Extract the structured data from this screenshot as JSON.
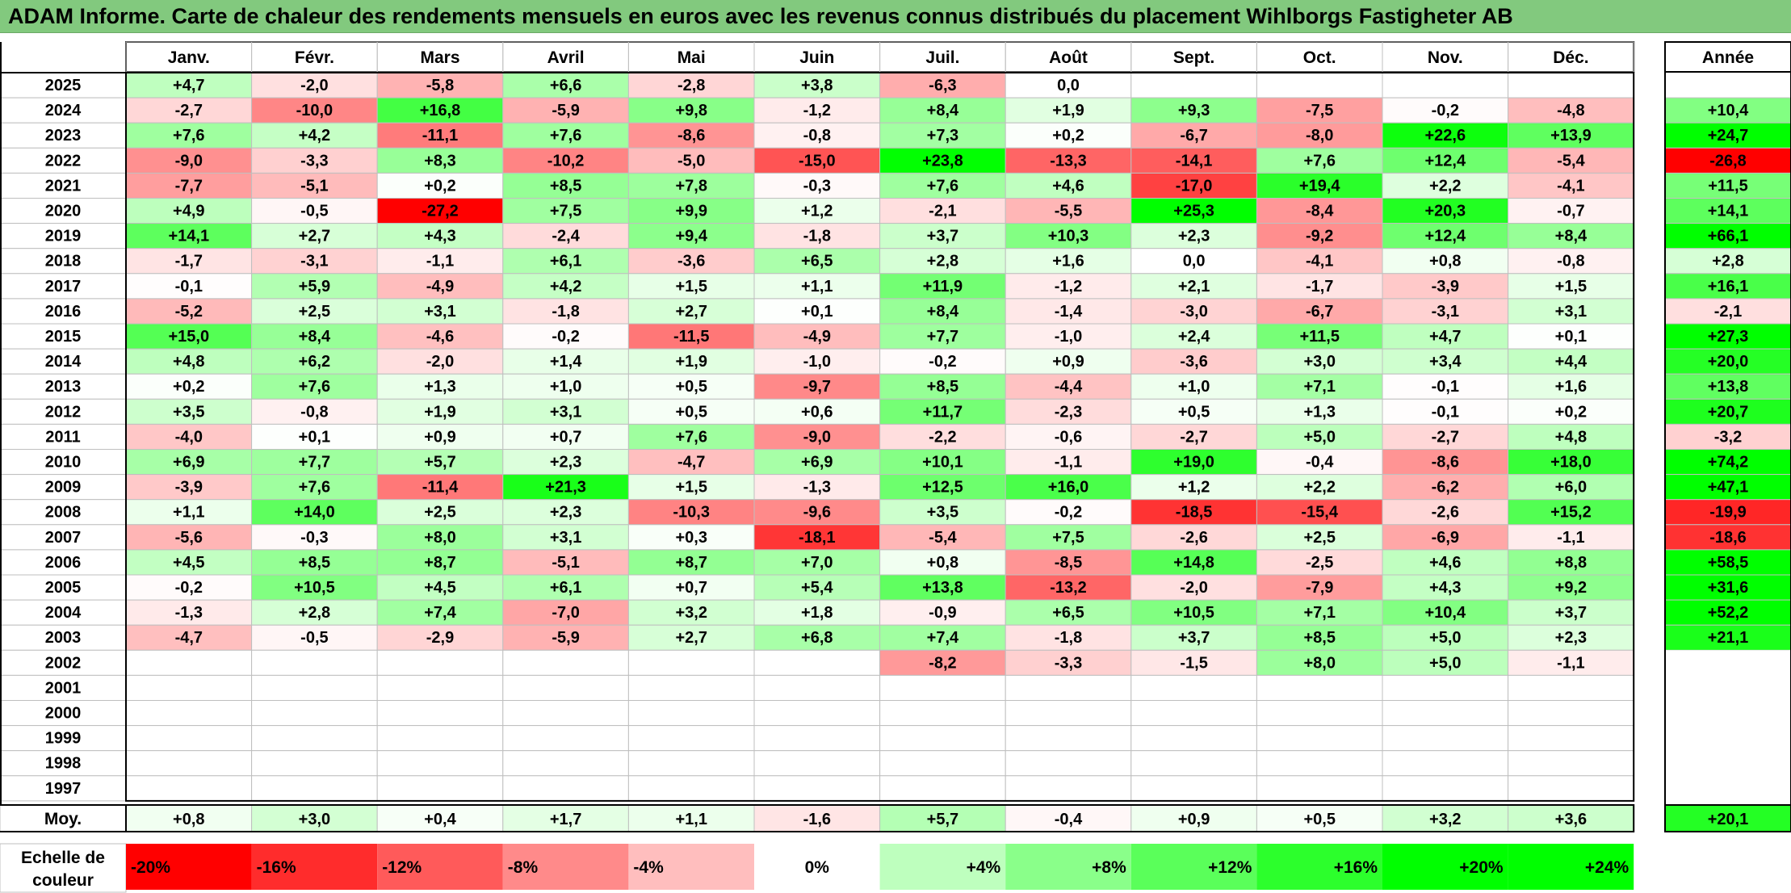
{
  "title": "ADAM Informe. Carte de chaleur des rendements mensuels en euros avec les revenus connus distribués du placement Wihlborgs Fastigheter AB",
  "chart_data": {
    "type": "heatmap",
    "months": [
      "Janv.",
      "Févr.",
      "Mars",
      "Avril",
      "Mai",
      "Juin",
      "Juil.",
      "Août",
      "Sept.",
      "Oct.",
      "Nov.",
      "Déc."
    ],
    "year_header": "Année",
    "rows": [
      {
        "year": "2025",
        "values": [
          4.7,
          -2.0,
          -5.8,
          6.6,
          -2.8,
          3.8,
          -6.3,
          0.0,
          null,
          null,
          null,
          null
        ],
        "annual": null
      },
      {
        "year": "2024",
        "values": [
          -2.7,
          -10.0,
          16.8,
          -5.9,
          9.8,
          -1.2,
          8.4,
          1.9,
          9.3,
          -7.5,
          -0.2,
          -4.8
        ],
        "annual": 10.4
      },
      {
        "year": "2023",
        "values": [
          7.6,
          4.2,
          -11.1,
          7.6,
          -8.6,
          -0.8,
          7.3,
          0.2,
          -6.7,
          -8.0,
          22.6,
          13.9
        ],
        "annual": 24.7
      },
      {
        "year": "2022",
        "values": [
          -9.0,
          -3.3,
          8.3,
          -10.2,
          -5.0,
          -15.0,
          23.8,
          -13.3,
          -14.1,
          7.6,
          12.4,
          -5.4
        ],
        "annual": -26.8
      },
      {
        "year": "2021",
        "values": [
          -7.7,
          -5.1,
          0.2,
          8.5,
          7.8,
          -0.3,
          7.6,
          4.6,
          -17.0,
          19.4,
          2.2,
          -4.1
        ],
        "annual": 11.5
      },
      {
        "year": "2020",
        "values": [
          4.9,
          -0.5,
          -27.2,
          7.5,
          9.9,
          1.2,
          -2.1,
          -5.5,
          25.3,
          -8.4,
          20.3,
          -0.7
        ],
        "annual": 14.1
      },
      {
        "year": "2019",
        "values": [
          14.1,
          2.7,
          4.3,
          -2.4,
          9.4,
          -1.8,
          3.7,
          10.3,
          2.3,
          -9.2,
          12.4,
          8.4
        ],
        "annual": 66.1
      },
      {
        "year": "2018",
        "values": [
          -1.7,
          -3.1,
          -1.1,
          6.1,
          -3.6,
          6.5,
          2.8,
          1.6,
          0.0,
          -4.1,
          0.8,
          -0.8
        ],
        "annual": 2.8
      },
      {
        "year": "2017",
        "values": [
          -0.1,
          5.9,
          -4.9,
          4.2,
          1.5,
          1.1,
          11.9,
          -1.2,
          2.1,
          -1.7,
          -3.9,
          1.5
        ],
        "annual": 16.1
      },
      {
        "year": "2016",
        "values": [
          -5.2,
          2.5,
          3.1,
          -1.8,
          2.7,
          0.1,
          8.4,
          -1.4,
          -3.0,
          -6.7,
          -3.1,
          3.1
        ],
        "annual": -2.1
      },
      {
        "year": "2015",
        "values": [
          15.0,
          8.4,
          -4.6,
          -0.2,
          -11.5,
          -4.9,
          7.7,
          -1.0,
          2.4,
          11.5,
          4.7,
          0.1
        ],
        "annual": 27.3
      },
      {
        "year": "2014",
        "values": [
          4.8,
          6.2,
          -2.0,
          1.4,
          1.9,
          -1.0,
          -0.2,
          0.9,
          -3.6,
          3.0,
          3.4,
          4.4
        ],
        "annual": 20.0
      },
      {
        "year": "2013",
        "values": [
          0.2,
          7.6,
          1.3,
          1.0,
          0.5,
          -9.7,
          8.5,
          -4.4,
          1.0,
          7.1,
          -0.1,
          1.6
        ],
        "annual": 13.8
      },
      {
        "year": "2012",
        "values": [
          3.5,
          -0.8,
          1.9,
          3.1,
          0.5,
          0.6,
          11.7,
          -2.3,
          0.5,
          1.3,
          -0.1,
          0.2
        ],
        "annual": 20.7
      },
      {
        "year": "2011",
        "values": [
          -4.0,
          0.1,
          0.9,
          0.7,
          7.6,
          -9.0,
          -2.2,
          -0.6,
          -2.7,
          5.0,
          -2.7,
          4.8
        ],
        "annual": -3.2
      },
      {
        "year": "2010",
        "values": [
          6.9,
          7.7,
          5.7,
          2.3,
          -4.7,
          6.9,
          10.1,
          -1.1,
          19.0,
          -0.4,
          -8.6,
          18.0
        ],
        "annual": 74.2
      },
      {
        "year": "2009",
        "values": [
          -3.9,
          7.6,
          -11.4,
          21.3,
          1.5,
          -1.3,
          12.5,
          16.0,
          1.2,
          2.2,
          -6.2,
          6.0
        ],
        "annual": 47.1
      },
      {
        "year": "2008",
        "values": [
          1.1,
          14.0,
          2.5,
          2.3,
          -10.3,
          -9.6,
          3.5,
          -0.2,
          -18.5,
          -15.4,
          -2.6,
          15.2
        ],
        "annual": -19.9
      },
      {
        "year": "2007",
        "values": [
          -5.6,
          -0.3,
          8.0,
          3.1,
          0.3,
          -18.1,
          -5.4,
          7.5,
          -2.6,
          2.5,
          -6.9,
          -1.1
        ],
        "annual": -18.6
      },
      {
        "year": "2006",
        "values": [
          4.5,
          8.5,
          8.7,
          -5.1,
          8.7,
          7.0,
          0.8,
          -8.5,
          14.8,
          -2.5,
          4.6,
          8.8
        ],
        "annual": 58.5
      },
      {
        "year": "2005",
        "values": [
          -0.2,
          10.5,
          4.5,
          6.1,
          0.7,
          5.4,
          13.8,
          -13.2,
          -2.0,
          -7.9,
          4.3,
          9.2
        ],
        "annual": 31.6
      },
      {
        "year": "2004",
        "values": [
          -1.3,
          2.8,
          7.4,
          -7.0,
          3.2,
          1.8,
          -0.9,
          6.5,
          10.5,
          7.1,
          10.4,
          3.7
        ],
        "annual": 52.2
      },
      {
        "year": "2003",
        "values": [
          -4.7,
          -0.5,
          -2.9,
          -5.9,
          2.7,
          6.8,
          7.4,
          -1.8,
          3.7,
          8.5,
          5.0,
          2.3
        ],
        "annual": 21.1
      },
      {
        "year": "2002",
        "values": [
          null,
          null,
          null,
          null,
          null,
          null,
          -8.2,
          -3.3,
          -1.5,
          8.0,
          5.0,
          -1.1
        ],
        "annual": null
      },
      {
        "year": "2001",
        "values": [
          null,
          null,
          null,
          null,
          null,
          null,
          null,
          null,
          null,
          null,
          null,
          null
        ],
        "annual": null
      },
      {
        "year": "2000",
        "values": [
          null,
          null,
          null,
          null,
          null,
          null,
          null,
          null,
          null,
          null,
          null,
          null
        ],
        "annual": null
      },
      {
        "year": "1999",
        "values": [
          null,
          null,
          null,
          null,
          null,
          null,
          null,
          null,
          null,
          null,
          null,
          null
        ],
        "annual": null
      },
      {
        "year": "1998",
        "values": [
          null,
          null,
          null,
          null,
          null,
          null,
          null,
          null,
          null,
          null,
          null,
          null
        ],
        "annual": null
      },
      {
        "year": "1997",
        "values": [
          null,
          null,
          null,
          null,
          null,
          null,
          null,
          null,
          null,
          null,
          null,
          null
        ],
        "annual": null
      }
    ],
    "average": {
      "label": "Moy.",
      "values": [
        0.8,
        3.0,
        0.4,
        1.7,
        1.1,
        -1.6,
        5.7,
        -0.4,
        0.9,
        0.5,
        3.2,
        3.6
      ],
      "annual": 20.1
    },
    "color_scale": {
      "label_line1": "Echelle de",
      "label_line2": "couleur",
      "steps": [
        "-20%",
        "-16%",
        "-12%",
        "-8%",
        "-4%",
        "0%",
        "+4%",
        "+8%",
        "+12%",
        "+16%",
        "+20%",
        "+24%"
      ],
      "step_values": [
        -20,
        -16,
        -12,
        -8,
        -4,
        0,
        4,
        8,
        12,
        16,
        20,
        24
      ],
      "negative_color": "#ff0000",
      "positive_color": "#00ff00",
      "neutral_color": "#ffffff"
    },
    "title_bar_color": "#82c97e"
  }
}
